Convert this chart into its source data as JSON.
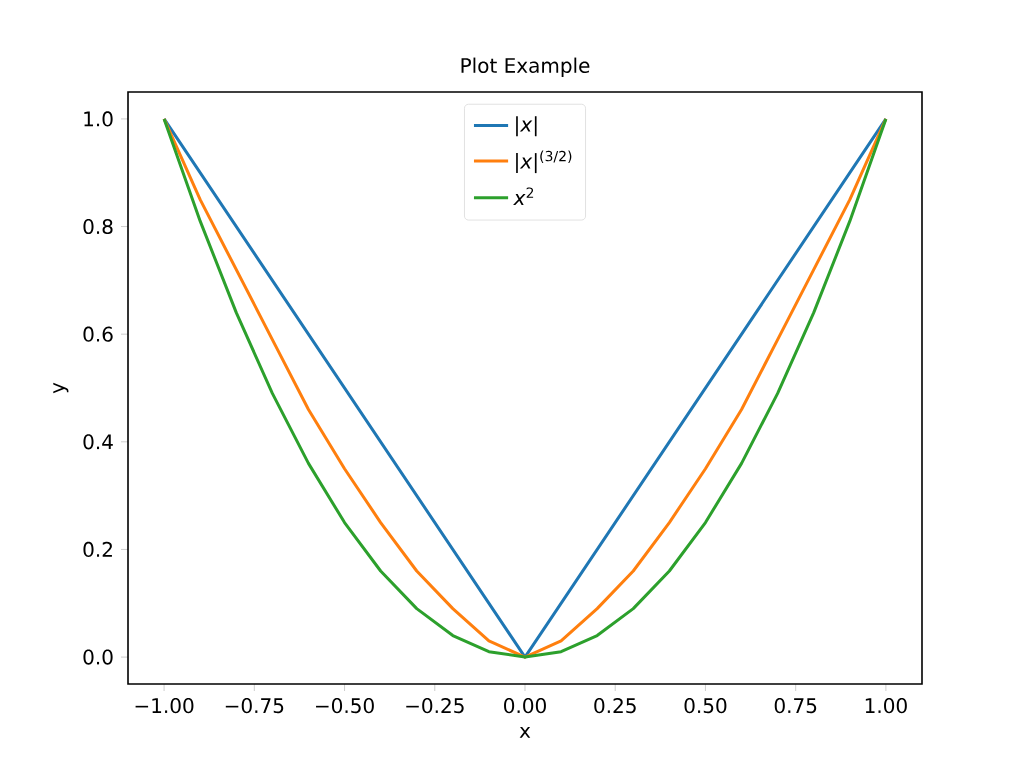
{
  "chart_data": {
    "type": "line",
    "title": "Plot Example",
    "xlabel": "x",
    "ylabel": "y",
    "series": [
      {
        "name": "|*x*|",
        "color": "#1f77b4",
        "x": [
          -1,
          0,
          1
        ],
        "values": [
          1,
          0,
          1
        ]
      },
      {
        "name": "|*x*|$^{(3/2)}$",
        "color": "#ff7f0e",
        "x": [
          -1,
          -0.9,
          -0.8,
          -0.7,
          -0.6,
          -0.5,
          -0.4,
          -0.3,
          -0.2,
          -0.1,
          0,
          0.1,
          0.2,
          0.3,
          0.4,
          0.5,
          0.6,
          0.7,
          0.8,
          0.9,
          1
        ],
        "values": [
          1,
          0.85,
          0.72,
          0.59,
          0.46,
          0.35,
          0.25,
          0.16,
          0.09,
          0.03,
          0,
          0.03,
          0.09,
          0.16,
          0.25,
          0.35,
          0.46,
          0.59,
          0.72,
          0.85,
          1
        ]
      },
      {
        "name": "*x*$^{2}$",
        "color": "#2ca02c",
        "x": [
          -1,
          -0.9,
          -0.8,
          -0.7,
          -0.6,
          -0.5,
          -0.4,
          -0.3,
          -0.2,
          -0.1,
          0,
          0.1,
          0.2,
          0.3,
          0.4,
          0.5,
          0.6,
          0.7,
          0.8,
          0.9,
          1
        ],
        "values": [
          1,
          0.81,
          0.64,
          0.49,
          0.36,
          0.25,
          0.16,
          0.09,
          0.04,
          0.01,
          0,
          0.01,
          0.04,
          0.09,
          0.16,
          0.25,
          0.36,
          0.49,
          0.64,
          0.81,
          1
        ]
      }
    ],
    "xlim": [
      -1.1,
      1.1
    ],
    "ylim": [
      -0.05,
      1.05
    ],
    "xticks": [
      {
        "value": -1,
        "label": "−1.00"
      },
      {
        "value": -0.75,
        "label": "−0.75"
      },
      {
        "value": -0.5,
        "label": "−0.50"
      },
      {
        "value": -0.25,
        "label": "−0.25"
      },
      {
        "value": 0,
        "label": "0.00"
      },
      {
        "value": 0.25,
        "label": "0.25"
      },
      {
        "value": 0.5,
        "label": "0.50"
      },
      {
        "value": 0.75,
        "label": "0.75"
      },
      {
        "value": 1,
        "label": "1.00"
      }
    ],
    "yticks": [
      {
        "value": 0,
        "label": "0.0"
      },
      {
        "value": 0.2,
        "label": "0.2"
      },
      {
        "value": 0.4,
        "label": "0.4"
      },
      {
        "value": 0.6,
        "label": "0.6"
      },
      {
        "value": 0.8,
        "label": "0.8"
      },
      {
        "value": 1,
        "label": "1.0"
      }
    ],
    "legend": "top",
    "grid": false,
    "marker": "none",
    "line_style": "solid"
  }
}
